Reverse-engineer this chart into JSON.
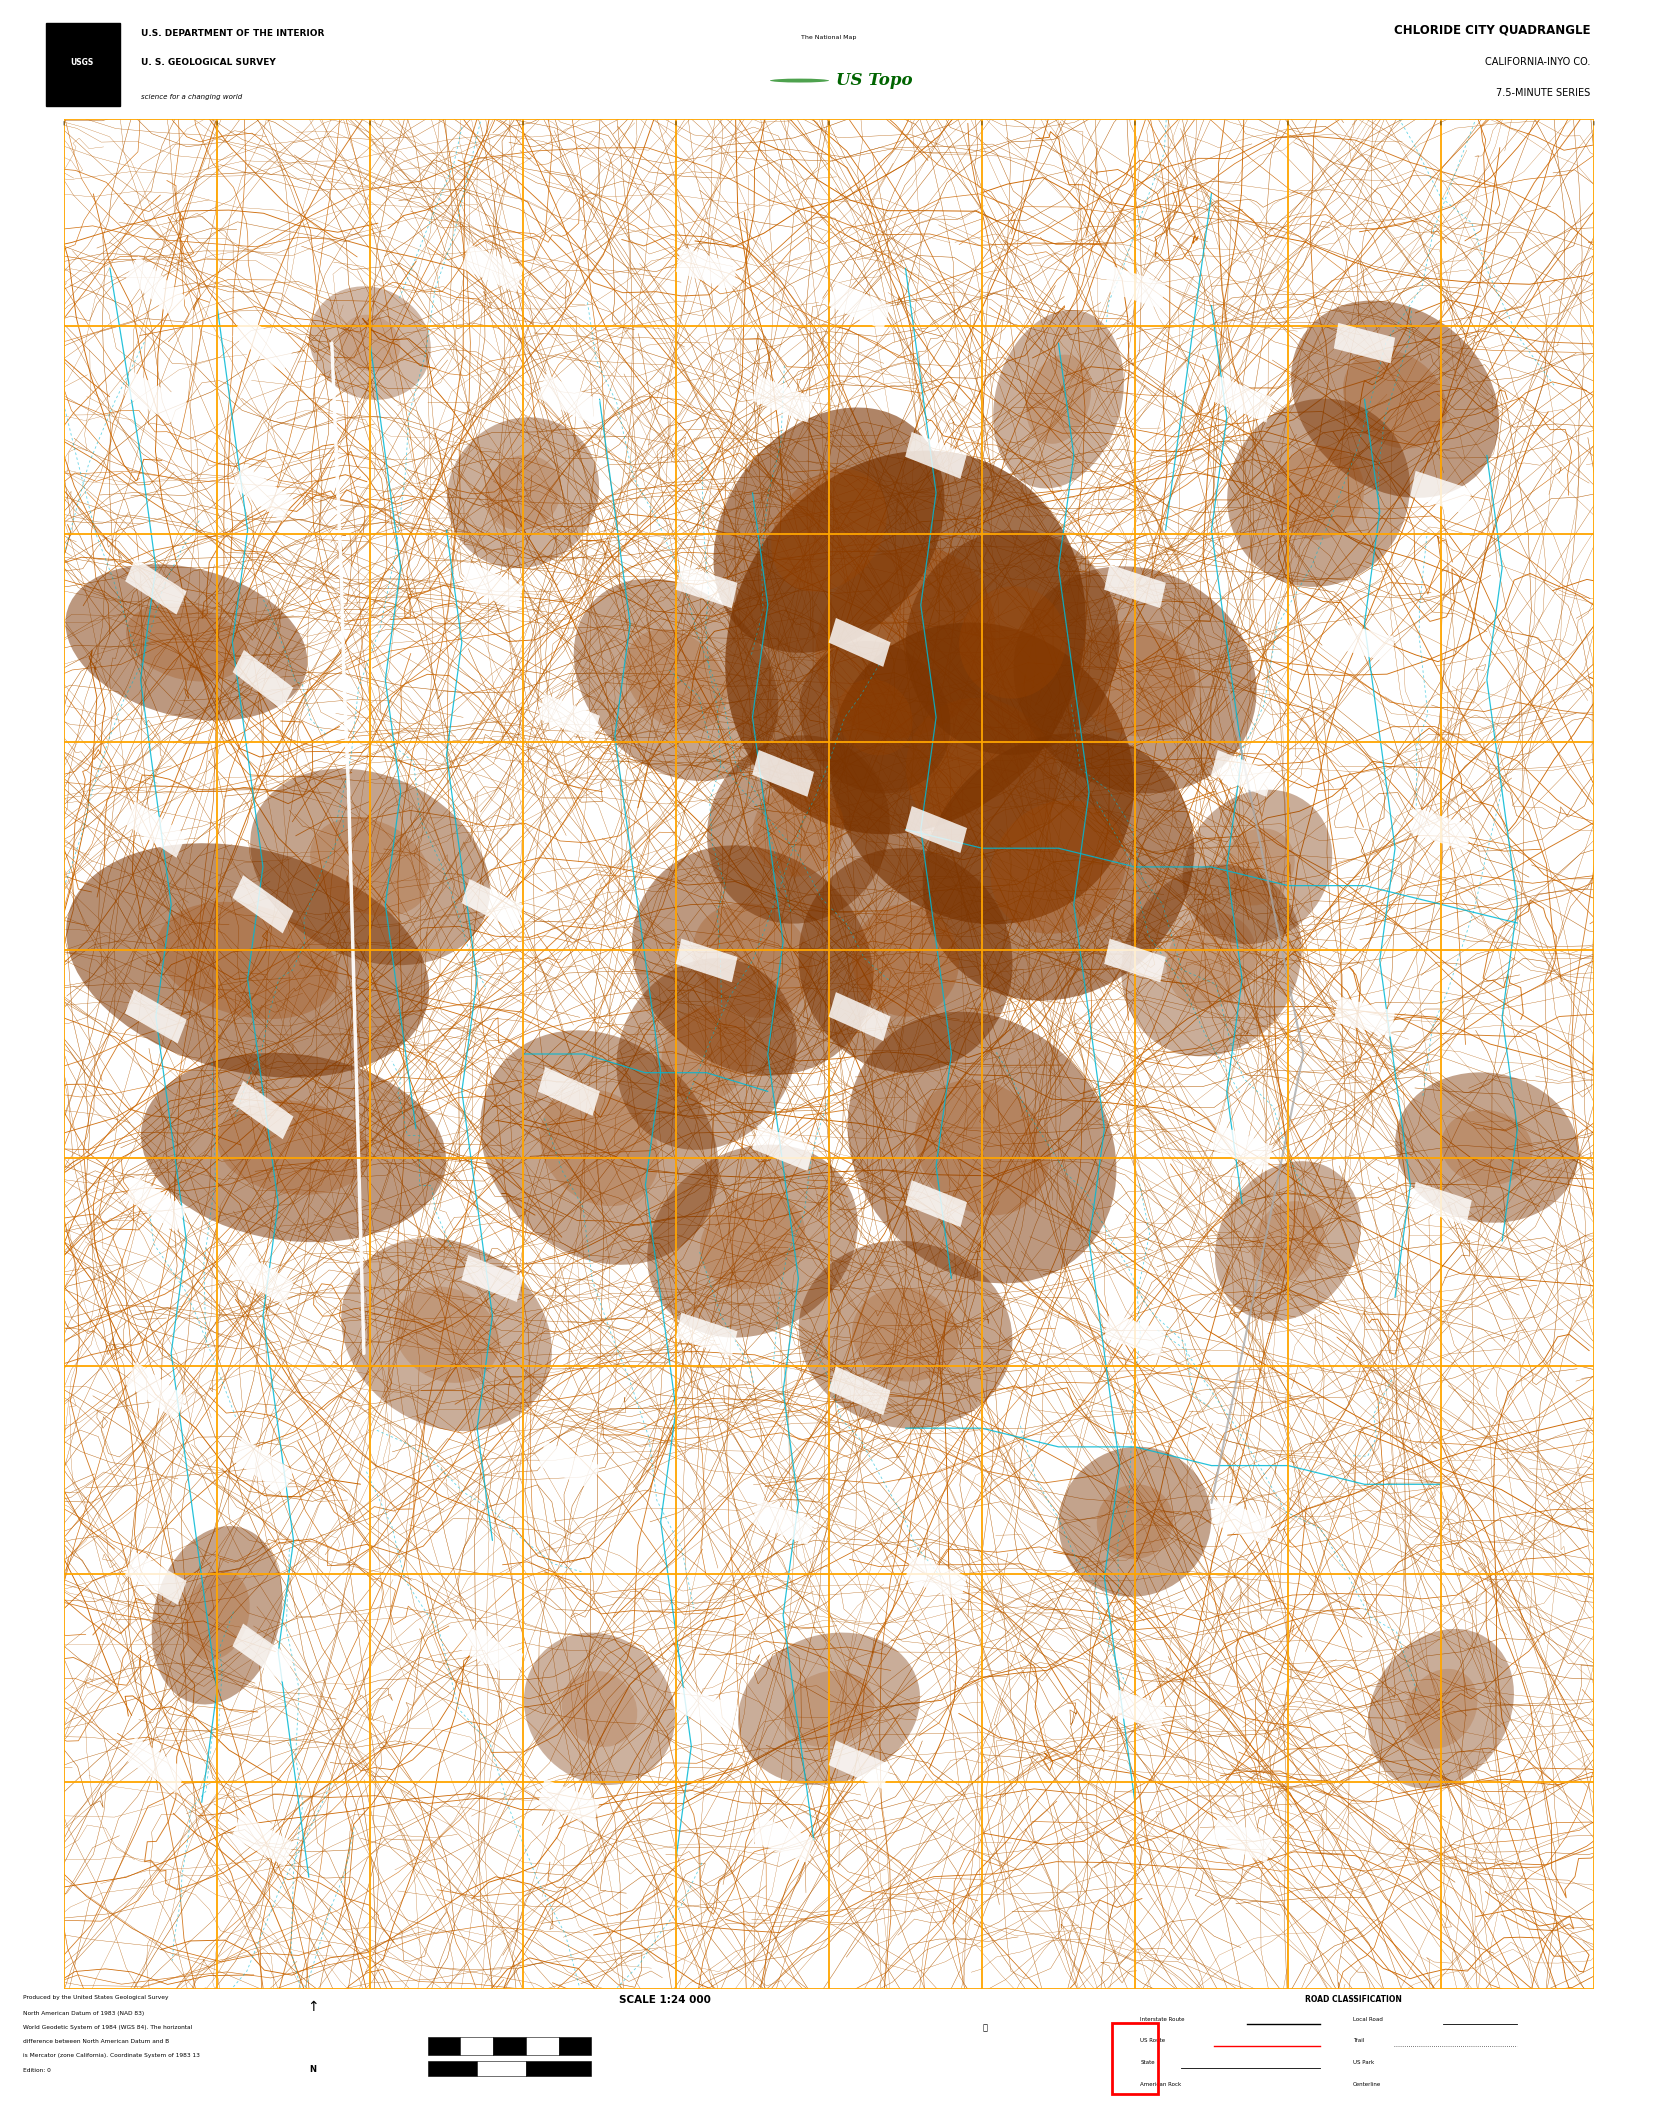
{
  "title": "CHLORIDE CITY QUADRANGLE",
  "subtitle1": "CALIFORNIA-INYO CO.",
  "subtitle2": "7.5-MINUTE SERIES",
  "header_left_line1": "U.S. DEPARTMENT OF THE INTERIOR",
  "header_left_line2": "U. S. GEOLOGICAL SURVEY",
  "header_left_line3": "science for a changing world",
  "map_bg_color": "#000000",
  "contour_color": "#b35a00",
  "contour_index_color": "#cc6600",
  "grid_color": "#ffa500",
  "water_color": "#00b8d4",
  "water_dash_color": "#40c8e0",
  "terrain_brown": "#7a3300",
  "terrain_dark": "#3d1500",
  "white": "#ffffff",
  "black": "#000000",
  "outer_bg": "#ffffff",
  "footer_black": "#000000",
  "red_rect_color": "#ff0000",
  "scale_text": "SCALE 1:24 000",
  "road_class_title": "ROAD CLASSIFICATION",
  "fig_width": 16.38,
  "fig_height": 20.88,
  "map_l": 0.033,
  "map_r": 0.967,
  "map_b": 0.052,
  "map_t": 0.948,
  "n_contour_lines": 1800,
  "n_stream_lines": 120,
  "n_terrain_patches": 35,
  "n_label_markers": 65
}
